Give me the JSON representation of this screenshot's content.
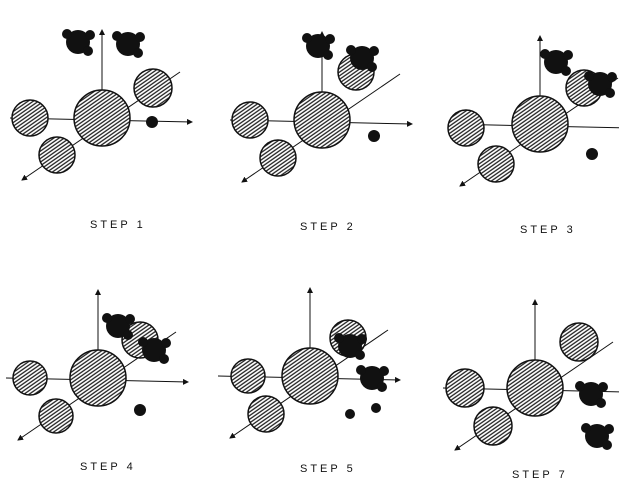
{
  "panels": [
    {
      "label": "STEP 1"
    },
    {
      "label": "STEP 2"
    },
    {
      "label": "STEP 3"
    },
    {
      "label": "STEP 4"
    },
    {
      "label": "STEP 5"
    },
    {
      "label": "STEP 7"
    }
  ]
}
